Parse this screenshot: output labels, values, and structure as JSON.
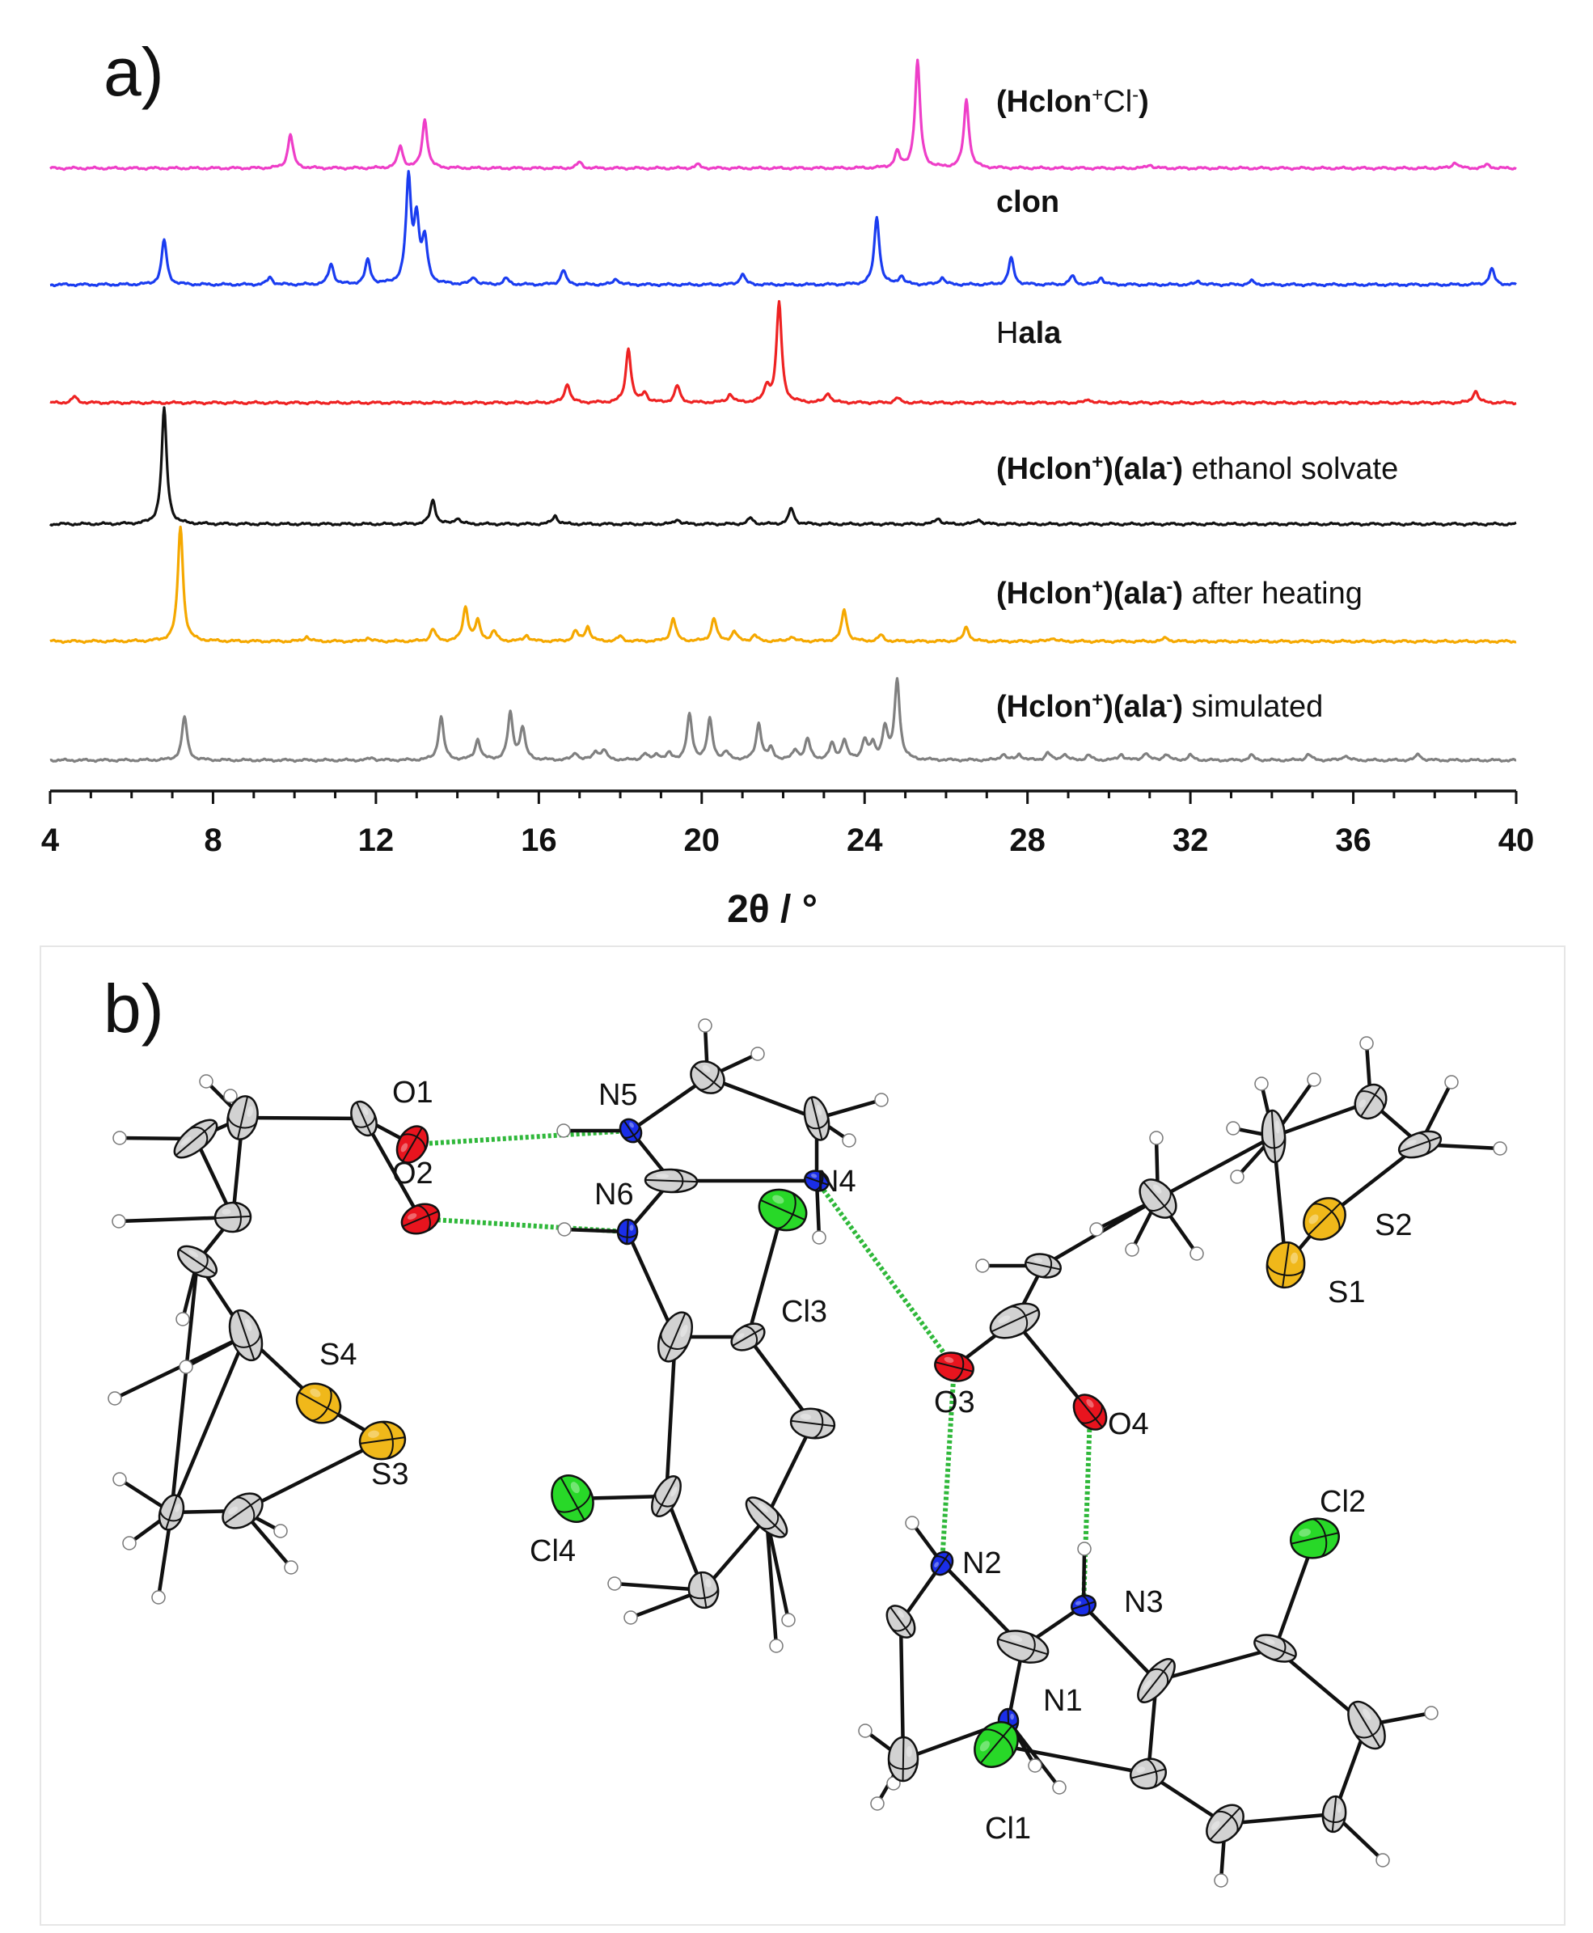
{
  "panels": {
    "a_label": "a)",
    "b_label": "b)"
  },
  "chart_data": {
    "type": "line",
    "title": "",
    "xlabel": "2θ / °",
    "ylabel": "",
    "xlim": [
      4,
      40
    ],
    "xticks": [
      4,
      8,
      12,
      16,
      20,
      24,
      28,
      32,
      36,
      40
    ],
    "grid": false,
    "legend": "inline labels at right of each trace",
    "series": [
      {
        "label": [
          {
            "t": "(H",
            "b": true
          },
          {
            "t": "clon",
            "b": true
          },
          {
            "t": "+",
            "b": false,
            "sup": true
          },
          {
            "t": "Cl",
            "b": false
          },
          {
            "t": "-",
            "b": false,
            "sup": true
          },
          {
            "t": ")",
            "b": true
          }
        ],
        "color": "#ee3ec8",
        "peaks": [
          [
            9.9,
            0.28
          ],
          [
            12.6,
            0.18
          ],
          [
            13.2,
            0.4
          ],
          [
            17.0,
            0.05
          ],
          [
            19.9,
            0.03
          ],
          [
            24.8,
            0.13
          ],
          [
            25.3,
            0.88
          ],
          [
            26.5,
            0.56
          ],
          [
            31.0,
            0.03
          ],
          [
            38.5,
            0.05
          ],
          [
            39.3,
            0.03
          ]
        ]
      },
      {
        "label": [
          {
            "t": "clon",
            "b": true
          }
        ],
        "color": "#1a3cf0",
        "peaks": [
          [
            6.8,
            0.37
          ],
          [
            9.4,
            0.06
          ],
          [
            10.9,
            0.17
          ],
          [
            11.8,
            0.2
          ],
          [
            12.8,
            0.85
          ],
          [
            13.0,
            0.5
          ],
          [
            13.2,
            0.35
          ],
          [
            14.4,
            0.06
          ],
          [
            15.2,
            0.05
          ],
          [
            16.6,
            0.12
          ],
          [
            17.9,
            0.05
          ],
          [
            21.0,
            0.09
          ],
          [
            24.3,
            0.56
          ],
          [
            24.9,
            0.07
          ],
          [
            25.9,
            0.06
          ],
          [
            27.6,
            0.22
          ],
          [
            29.1,
            0.07
          ],
          [
            29.8,
            0.06
          ],
          [
            32.2,
            0.03
          ],
          [
            33.5,
            0.03
          ],
          [
            39.4,
            0.13
          ]
        ]
      },
      {
        "label": [
          {
            "t": "H",
            "b": false
          },
          {
            "t": "ala",
            "b": true
          }
        ],
        "color": "#ee2222",
        "peaks": [
          [
            4.6,
            0.05
          ],
          [
            16.7,
            0.16
          ],
          [
            18.2,
            0.45
          ],
          [
            18.6,
            0.08
          ],
          [
            19.4,
            0.14
          ],
          [
            20.7,
            0.07
          ],
          [
            21.6,
            0.13
          ],
          [
            21.9,
            0.82
          ],
          [
            23.1,
            0.08
          ],
          [
            24.8,
            0.04
          ],
          [
            29.5,
            0.03
          ],
          [
            39.0,
            0.1
          ]
        ]
      },
      {
        "label": [
          {
            "t": "(H",
            "b": true
          },
          {
            "t": "clon",
            "b": true
          },
          {
            "t": "+",
            "b": true,
            "sup": true
          },
          {
            "t": ")(",
            "b": true
          },
          {
            "t": "ala",
            "b": true
          },
          {
            "t": "-",
            "b": true,
            "sup": true
          },
          {
            "t": ")",
            "b": true
          },
          {
            "t": " ethanol solvate",
            "b": false
          }
        ],
        "color": "#111111",
        "peaks": [
          [
            6.8,
            0.95
          ],
          [
            13.4,
            0.2
          ],
          [
            14.0,
            0.05
          ],
          [
            16.4,
            0.07
          ],
          [
            19.4,
            0.04
          ],
          [
            21.2,
            0.05
          ],
          [
            22.2,
            0.13
          ],
          [
            25.8,
            0.05
          ],
          [
            26.8,
            0.04
          ]
        ]
      },
      {
        "label": [
          {
            "t": "(H",
            "b": true
          },
          {
            "t": "clon",
            "b": true
          },
          {
            "t": "+",
            "b": true,
            "sup": true
          },
          {
            "t": ")(",
            "b": true
          },
          {
            "t": "ala",
            "b": true
          },
          {
            "t": "-",
            "b": true,
            "sup": true
          },
          {
            "t": ")",
            "b": true
          },
          {
            "t": " after heating",
            "b": false
          }
        ],
        "color": "#f5a800",
        "peaks": [
          [
            7.2,
            0.95
          ],
          [
            10.3,
            0.04
          ],
          [
            11.8,
            0.03
          ],
          [
            13.4,
            0.1
          ],
          [
            14.2,
            0.28
          ],
          [
            14.5,
            0.16
          ],
          [
            14.9,
            0.08
          ],
          [
            15.7,
            0.05
          ],
          [
            16.9,
            0.08
          ],
          [
            17.2,
            0.12
          ],
          [
            18.0,
            0.04
          ],
          [
            19.3,
            0.19
          ],
          [
            20.3,
            0.19
          ],
          [
            20.8,
            0.08
          ],
          [
            21.3,
            0.05
          ],
          [
            22.2,
            0.04
          ],
          [
            23.5,
            0.26
          ],
          [
            24.4,
            0.05
          ],
          [
            26.5,
            0.12
          ],
          [
            28.6,
            0.03
          ],
          [
            31.4,
            0.03
          ]
        ]
      },
      {
        "label": [
          {
            "t": "(H",
            "b": true
          },
          {
            "t": "clon",
            "b": true
          },
          {
            "t": "+",
            "b": true,
            "sup": true
          },
          {
            "t": ")(",
            "b": true
          },
          {
            "t": "ala",
            "b": true
          },
          {
            "t": "-",
            "b": true,
            "sup": true
          },
          {
            "t": ")",
            "b": true
          },
          {
            "t": " simulated",
            "b": false
          }
        ],
        "color": "#808080",
        "peaks": [
          [
            7.3,
            0.36
          ],
          [
            11.9,
            0.02
          ],
          [
            13.6,
            0.36
          ],
          [
            14.5,
            0.17
          ],
          [
            15.3,
            0.38
          ],
          [
            15.6,
            0.26
          ],
          [
            16.9,
            0.06
          ],
          [
            17.4,
            0.07
          ],
          [
            17.6,
            0.08
          ],
          [
            18.6,
            0.05
          ],
          [
            18.9,
            0.05
          ],
          [
            19.2,
            0.05
          ],
          [
            19.7,
            0.37
          ],
          [
            20.2,
            0.33
          ],
          [
            20.6,
            0.06
          ],
          [
            21.4,
            0.3
          ],
          [
            21.7,
            0.09
          ],
          [
            22.3,
            0.08
          ],
          [
            22.6,
            0.17
          ],
          [
            23.2,
            0.13
          ],
          [
            23.5,
            0.16
          ],
          [
            24.0,
            0.16
          ],
          [
            24.2,
            0.12
          ],
          [
            24.5,
            0.26
          ],
          [
            24.8,
            0.66
          ],
          [
            27.4,
            0.05
          ],
          [
            27.8,
            0.05
          ],
          [
            28.5,
            0.06
          ],
          [
            28.9,
            0.05
          ],
          [
            29.5,
            0.04
          ],
          [
            30.3,
            0.05
          ],
          [
            30.9,
            0.06
          ],
          [
            31.4,
            0.05
          ],
          [
            32.0,
            0.04
          ],
          [
            33.5,
            0.04
          ],
          [
            34.9,
            0.05
          ],
          [
            35.8,
            0.04
          ],
          [
            37.6,
            0.05
          ]
        ]
      }
    ]
  },
  "structure": {
    "labels": [
      {
        "id": "O1",
        "text": "O1"
      },
      {
        "id": "O2",
        "text": "O2"
      },
      {
        "id": "O3",
        "text": "O3"
      },
      {
        "id": "O4",
        "text": "O4"
      },
      {
        "id": "N1",
        "text": "N1"
      },
      {
        "id": "N2",
        "text": "N2"
      },
      {
        "id": "N3",
        "text": "N3"
      },
      {
        "id": "N4",
        "text": "N4"
      },
      {
        "id": "N5",
        "text": "N5"
      },
      {
        "id": "N6",
        "text": "N6"
      },
      {
        "id": "Cl1",
        "text": "Cl1"
      },
      {
        "id": "Cl2",
        "text": "Cl2"
      },
      {
        "id": "Cl3",
        "text": "Cl3"
      },
      {
        "id": "Cl4",
        "text": "Cl4"
      },
      {
        "id": "S1",
        "text": "S1"
      },
      {
        "id": "S2",
        "text": "S2"
      },
      {
        "id": "S3",
        "text": "S3"
      },
      {
        "id": "S4",
        "text": "S4"
      }
    ],
    "colors": {
      "carbon": "#d2d2d2",
      "hydrogen": "#ffffff",
      "oxygen": "#e8141e",
      "nitrogen": "#1a2ee8",
      "chlorine": "#28d828",
      "sulfur": "#f0b81a",
      "hbond": "#2fb83a",
      "bond": "#111111"
    }
  }
}
